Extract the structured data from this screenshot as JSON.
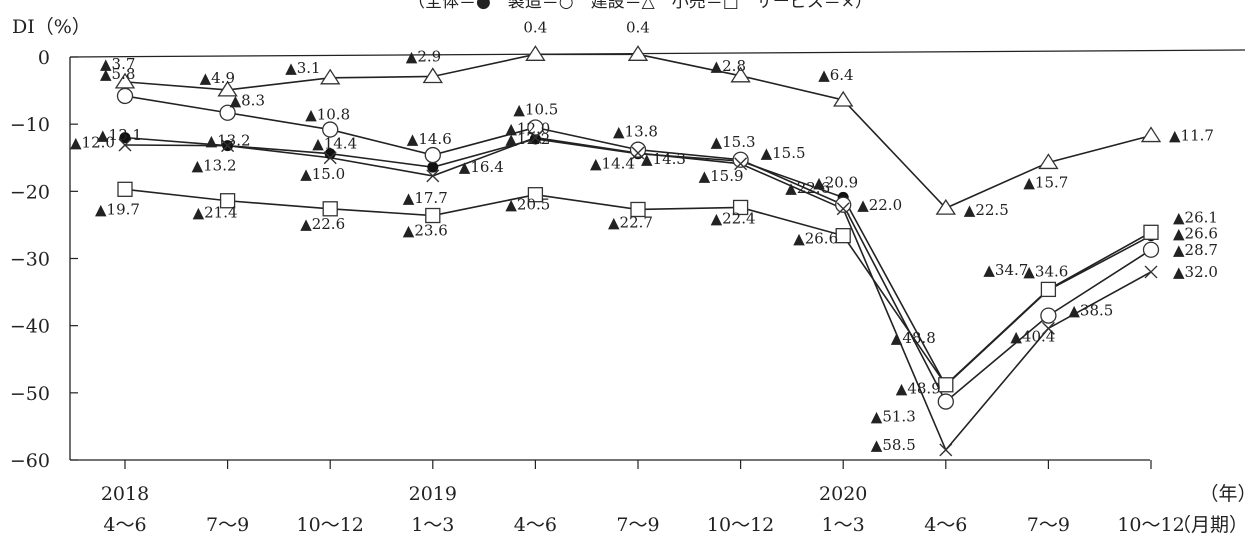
{
  "chart_data": {
    "type": "line",
    "legend_text": "（全体＝●　製造＝○　建設＝△　小売＝□　サービス＝×）",
    "ylabel": "DI（%）",
    "xunit_year": "（年）",
    "xunit_period": "（月期）",
    "ylim": [
      -60,
      0
    ],
    "yticks": [
      "0",
      "−10",
      "−20",
      "−30",
      "−40",
      "−50",
      "−60"
    ],
    "categories": [
      {
        "year": "2018",
        "period": "4〜6"
      },
      {
        "year": "",
        "period": "7〜9"
      },
      {
        "year": "",
        "period": "10〜12"
      },
      {
        "year": "2019",
        "period": "1〜3"
      },
      {
        "year": "",
        "period": "4〜6"
      },
      {
        "year": "",
        "period": "7〜9"
      },
      {
        "year": "",
        "period": "10〜12"
      },
      {
        "year": "2020",
        "period": "1〜3"
      },
      {
        "year": "",
        "period": "4〜6"
      },
      {
        "year": "",
        "period": "7〜9"
      },
      {
        "year": "",
        "period": "10〜12"
      }
    ],
    "series": [
      {
        "key": "total",
        "marker": "filled-circle",
        "values": [
          -12.0,
          -13.2,
          -14.4,
          -16.4,
          -12.2,
          -14.4,
          -15.5,
          -20.9,
          -48.9,
          -34.7,
          -26.6
        ],
        "labels": [
          "▲12.0",
          "▲13.2",
          "▲14.4",
          "▲16.4",
          "▲12.2",
          "▲14.4",
          "▲15.5",
          "▲20.9",
          "▲48.9",
          "▲34.7",
          "▲26.6"
        ]
      },
      {
        "key": "manufacturing",
        "marker": "open-circle",
        "values": [
          -5.8,
          -8.3,
          -10.8,
          -14.6,
          -10.5,
          -13.8,
          -15.3,
          -22.0,
          -51.3,
          -38.5,
          -28.7
        ],
        "labels": [
          "▲5.8",
          "▲8.3",
          "▲10.8",
          "▲14.6",
          "▲10.5",
          "▲13.8",
          "▲15.3",
          "▲22.0",
          "▲51.3",
          "▲38.5",
          "▲28.7"
        ]
      },
      {
        "key": "construction",
        "marker": "open-triangle",
        "values": [
          -3.7,
          -4.9,
          -3.1,
          -2.9,
          0.4,
          0.4,
          -2.8,
          -6.4,
          -22.5,
          -15.7,
          -11.7
        ],
        "labels": [
          "▲3.7",
          "▲4.9",
          "▲3.1",
          "▲2.9",
          "0.4",
          "0.4",
          "▲2.8",
          "▲6.4",
          "▲22.5",
          "▲15.7",
          "▲11.7"
        ]
      },
      {
        "key": "retail",
        "marker": "open-square",
        "values": [
          -19.7,
          -21.4,
          -22.6,
          -23.6,
          -20.5,
          -22.7,
          -22.4,
          -26.6,
          -48.8,
          -34.6,
          -26.1
        ],
        "labels": [
          "▲19.7",
          "▲21.4",
          "▲22.6",
          "▲23.6",
          "▲20.5",
          "▲22.7",
          "▲22.4",
          "▲26.6",
          "▲48.8",
          "▲34.6",
          "▲26.1"
        ]
      },
      {
        "key": "services",
        "marker": "cross",
        "values": [
          -13.1,
          -13.2,
          -15.0,
          -17.7,
          -12.0,
          -14.3,
          -15.9,
          -22.6,
          -58.5,
          -40.4,
          -32.0
        ],
        "labels": [
          "▲13.1",
          "▲13.2",
          "▲15.0",
          "▲17.7",
          "▲12.0",
          "▲14.3",
          "▲15.9",
          "▲22.6",
          "▲58.5",
          "▲40.4",
          "▲32.0"
        ]
      }
    ]
  }
}
